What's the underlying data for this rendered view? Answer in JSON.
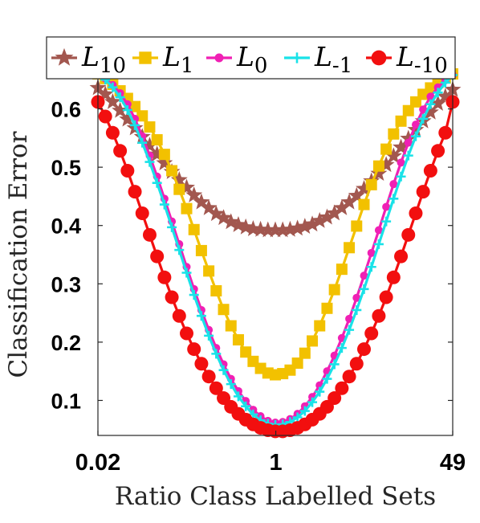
{
  "chart_data": {
    "type": "line",
    "title": "",
    "xlabel": "Ratio Class Labelled Sets",
    "ylabel": "Classification Error",
    "x_scale": "log",
    "xlim": [
      0.02,
      49
    ],
    "ylim": [
      0.04,
      0.66
    ],
    "x_ticks": [
      0.02,
      1,
      49
    ],
    "x_tick_labels": [
      "0.02",
      "1",
      "49"
    ],
    "y_ticks": [
      0.1,
      0.2,
      0.3,
      0.4,
      0.5,
      0.6
    ],
    "y_tick_labels": [
      "0.1",
      "0.2",
      "0.3",
      "0.4",
      "0.5",
      "0.6"
    ],
    "grid": false,
    "legend_position": "top",
    "x_note": "49 points per series, log-spaced from 0.02 to 49 (index i: x = 0.02 * 2450^(i/48))",
    "series": [
      {
        "name": "L10",
        "label_main": "L",
        "label_sub": "10",
        "color": "#A2574F",
        "marker": "star",
        "values": [
          0.636,
          0.625,
          0.612,
          0.597,
          0.582,
          0.567,
          0.552,
          0.537,
          0.522,
          0.507,
          0.492,
          0.478,
          0.465,
          0.452,
          0.44,
          0.43,
          0.42,
          0.413,
          0.406,
          0.401,
          0.397,
          0.394,
          0.393,
          0.392,
          0.392,
          0.392,
          0.393,
          0.395,
          0.398,
          0.402,
          0.408,
          0.414,
          0.421,
          0.43,
          0.44,
          0.451,
          0.463,
          0.476,
          0.489,
          0.504,
          0.519,
          0.534,
          0.549,
          0.564,
          0.579,
          0.594,
          0.609,
          0.621,
          0.633
        ]
      },
      {
        "name": "L1",
        "label_main": "L",
        "label_sub": "1",
        "color": "#F2C100",
        "marker": "square",
        "values": [
          0.66,
          0.652,
          0.642,
          0.631,
          0.618,
          0.604,
          0.588,
          0.569,
          0.547,
          0.522,
          0.494,
          0.462,
          0.429,
          0.393,
          0.357,
          0.322,
          0.288,
          0.256,
          0.228,
          0.204,
          0.183,
          0.167,
          0.155,
          0.147,
          0.144,
          0.146,
          0.152,
          0.164,
          0.181,
          0.202,
          0.228,
          0.258,
          0.29,
          0.325,
          0.362,
          0.399,
          0.436,
          0.47,
          0.502,
          0.531,
          0.557,
          0.579,
          0.597,
          0.612,
          0.625,
          0.636,
          0.645,
          0.653,
          0.66
        ]
      },
      {
        "name": "L0",
        "label_main": "L",
        "label_sub": "0",
        "color": "#F020B4",
        "marker": "circle-small",
        "values": [
          0.66,
          0.652,
          0.641,
          0.627,
          0.608,
          0.583,
          0.553,
          0.52,
          0.484,
          0.446,
          0.407,
          0.368,
          0.329,
          0.291,
          0.255,
          0.221,
          0.19,
          0.162,
          0.137,
          0.116,
          0.099,
          0.084,
          0.073,
          0.065,
          0.062,
          0.063,
          0.068,
          0.077,
          0.09,
          0.106,
          0.126,
          0.15,
          0.177,
          0.207,
          0.24,
          0.276,
          0.314,
          0.353,
          0.392,
          0.432,
          0.471,
          0.508,
          0.542,
          0.573,
          0.599,
          0.621,
          0.637,
          0.649,
          0.658
        ]
      },
      {
        "name": "L-1",
        "label_main": "L",
        "label_sub": "-1",
        "color": "#19E2E8",
        "marker": "plus",
        "values": [
          0.66,
          0.65,
          0.637,
          0.62,
          0.598,
          0.572,
          0.542,
          0.509,
          0.473,
          0.436,
          0.397,
          0.358,
          0.319,
          0.281,
          0.245,
          0.211,
          0.18,
          0.152,
          0.128,
          0.107,
          0.09,
          0.076,
          0.066,
          0.06,
          0.058,
          0.059,
          0.063,
          0.071,
          0.082,
          0.097,
          0.115,
          0.137,
          0.162,
          0.19,
          0.221,
          0.255,
          0.291,
          0.329,
          0.368,
          0.407,
          0.446,
          0.484,
          0.52,
          0.553,
          0.583,
          0.608,
          0.628,
          0.645,
          0.658
        ]
      },
      {
        "name": "L-10",
        "label_main": "L",
        "label_sub": "-10",
        "color": "#F20F0F",
        "marker": "circle",
        "values": [
          0.612,
          0.587,
          0.559,
          0.528,
          0.494,
          0.458,
          0.421,
          0.384,
          0.347,
          0.311,
          0.277,
          0.245,
          0.215,
          0.188,
          0.163,
          0.141,
          0.121,
          0.104,
          0.089,
          0.077,
          0.067,
          0.059,
          0.053,
          0.049,
          0.047,
          0.047,
          0.049,
          0.053,
          0.059,
          0.067,
          0.077,
          0.089,
          0.104,
          0.121,
          0.141,
          0.163,
          0.188,
          0.215,
          0.245,
          0.277,
          0.311,
          0.347,
          0.384,
          0.421,
          0.458,
          0.494,
          0.528,
          0.559,
          0.612
        ]
      }
    ]
  }
}
